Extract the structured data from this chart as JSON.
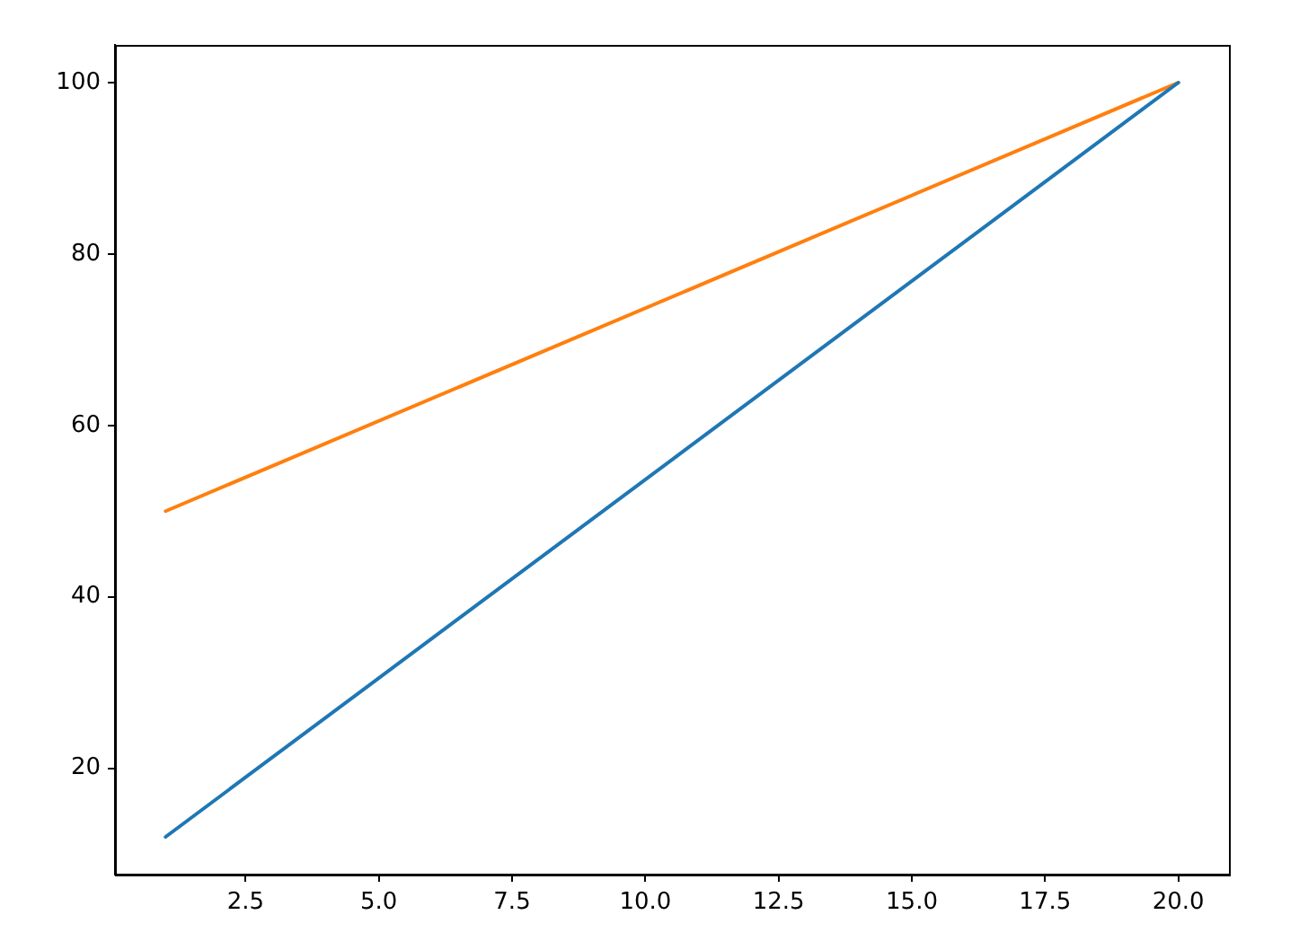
{
  "chart_data": {
    "type": "line",
    "x": [
      1,
      20
    ],
    "series": [
      {
        "color": "#1f77b4",
        "values": [
          12,
          100
        ]
      },
      {
        "color": "#ff7f0e",
        "values": [
          50,
          100
        ]
      }
    ],
    "xlim": [
      0.05,
      20.95
    ],
    "xticks": [
      {
        "value": 2.5,
        "label": "2.5"
      },
      {
        "value": 5,
        "label": "5.0"
      },
      {
        "value": 7.5,
        "label": "7.5"
      },
      {
        "value": 10,
        "label": "10.0"
      },
      {
        "value": 12.5,
        "label": "12.5"
      },
      {
        "value": 15,
        "label": "15.0"
      },
      {
        "value": 17.5,
        "label": "17.5"
      },
      {
        "value": 20,
        "label": "20.0"
      }
    ],
    "ylim": [
      7.6,
      104.4
    ],
    "yticks": [
      20,
      40,
      60,
      80,
      100
    ],
    "grid": false,
    "legend": false,
    "marker": "none",
    "line_style": "solid"
  }
}
